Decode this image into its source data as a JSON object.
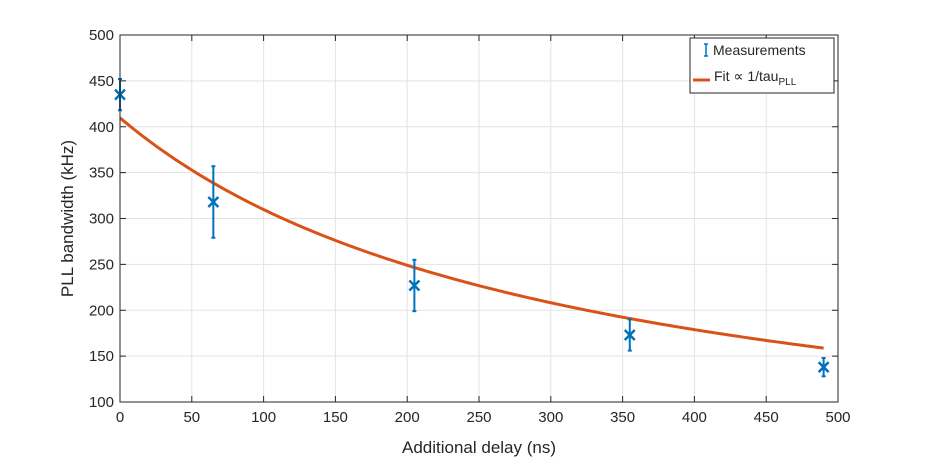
{
  "chart_data": {
    "type": "scatter",
    "xlabel": "Additional delay (ns)",
    "ylabel": "PLL bandwidth (kHz)",
    "xlim": [
      0,
      500
    ],
    "ylim": [
      100,
      500
    ],
    "xticks": [
      0,
      50,
      100,
      150,
      200,
      250,
      300,
      350,
      400,
      450,
      500
    ],
    "yticks": [
      100,
      150,
      200,
      250,
      300,
      350,
      400,
      450,
      500
    ],
    "grid": true,
    "legend_position": "top-right",
    "series": [
      {
        "name": "Measurements",
        "kind": "errorbar",
        "marker": "x",
        "color": "#0072BD",
        "x": [
          0,
          65,
          205,
          355,
          490
        ],
        "y": [
          435,
          318,
          227,
          173,
          138
        ],
        "err": [
          17,
          39,
          28,
          17,
          10
        ]
      },
      {
        "name": "Fit ∝ 1/tau",
        "name_subscript": "PLL",
        "kind": "line",
        "color": "#D95319",
        "model": "a / (x + t0)",
        "params": {
          "a": 127000,
          "t0": 310
        },
        "x_range": [
          0,
          490
        ]
      }
    ]
  }
}
